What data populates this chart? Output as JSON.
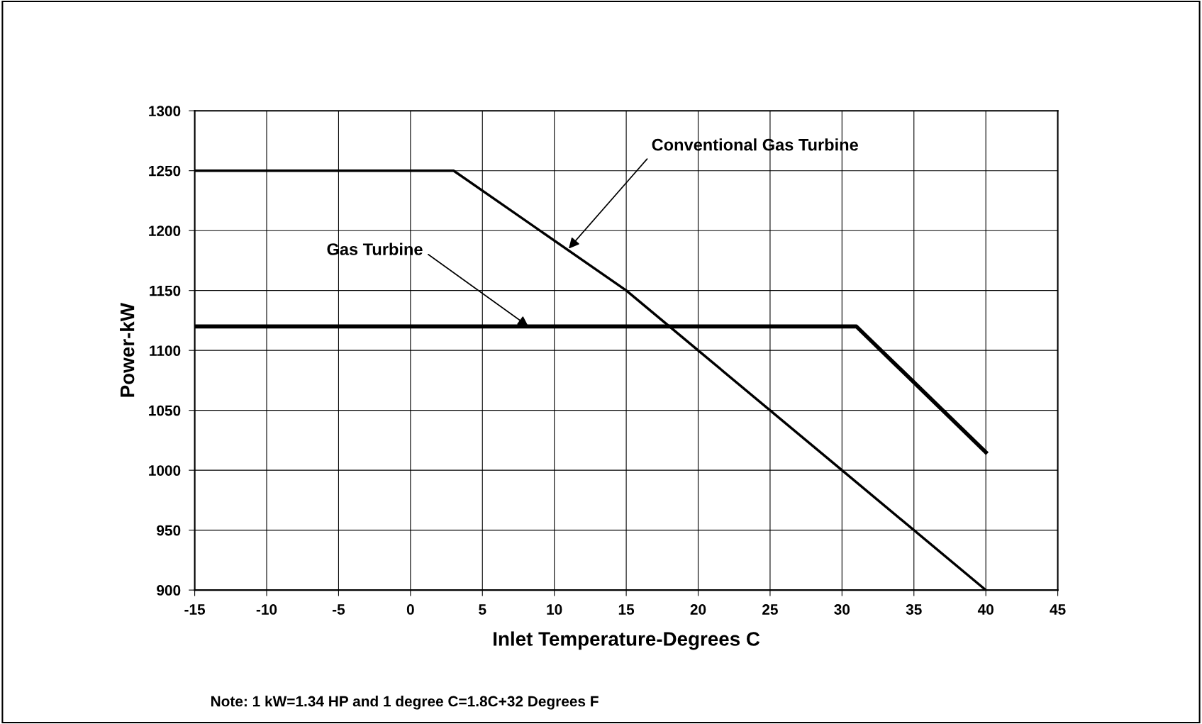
{
  "chart_data": {
    "type": "line",
    "xlabel": "Inlet Temperature-Degrees C",
    "ylabel": "Power-kW",
    "series": [
      {
        "x": [
          -15,
          3,
          15,
          20,
          30,
          40
        ],
        "values": [
          1250,
          1250,
          1150,
          1100,
          1000,
          900
        ],
        "color": "#000000"
      },
      {
        "x": [
          -15,
          31,
          40
        ],
        "values": [
          1120,
          1120,
          1015
        ],
        "color": "#000000"
      }
    ],
    "xlim": [
      -15,
      45
    ],
    "xticks": [
      -15,
      -10,
      -5,
      0,
      5,
      10,
      15,
      20,
      25,
      30,
      35,
      40,
      45
    ],
    "ylim": [
      900,
      1300
    ],
    "yticks": [
      900,
      950,
      1000,
      1050,
      1100,
      1150,
      1200,
      1250,
      1300
    ],
    "grid": true,
    "legend": false,
    "marker": "none",
    "line_style": "solid",
    "annotations": [
      {
        "text": "Conventional Gas Turbine",
        "x": 11,
        "y": 1185
      },
      {
        "text": "Gas Turbine",
        "x": 8.2,
        "y": 1120
      },
      "Note: 1 kW=1.34 HP and 1 degree C=1.8C+32 Degrees F"
    ]
  }
}
